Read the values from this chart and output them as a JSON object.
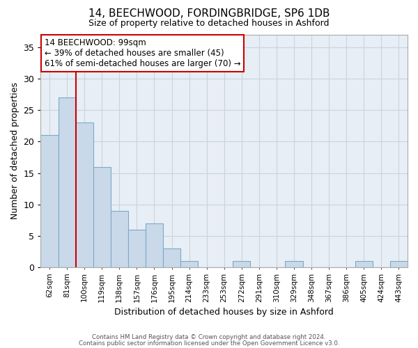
{
  "title_line1": "14, BEECHWOOD, FORDINGBRIDGE, SP6 1DB",
  "title_line2": "Size of property relative to detached houses in Ashford",
  "xlabel": "Distribution of detached houses by size in Ashford",
  "ylabel": "Number of detached properties",
  "categories": [
    "62sqm",
    "81sqm",
    "100sqm",
    "119sqm",
    "138sqm",
    "157sqm",
    "176sqm",
    "195sqm",
    "214sqm",
    "233sqm",
    "253sqm",
    "272sqm",
    "291sqm",
    "310sqm",
    "329sqm",
    "348sqm",
    "367sqm",
    "386sqm",
    "405sqm",
    "424sqm",
    "443sqm"
  ],
  "values": [
    21,
    27,
    23,
    16,
    9,
    6,
    7,
    3,
    1,
    0,
    0,
    1,
    0,
    0,
    1,
    0,
    0,
    0,
    1,
    0,
    1
  ],
  "bar_color": "#c9d9ea",
  "bar_edge_color": "#7aaac8",
  "grid_color": "#c8d4e0",
  "background_color": "#e8eef5",
  "vline_index": 2,
  "annotation_line1": "14 BEECHWOOD: 99sqm",
  "annotation_line2": "← 39% of detached houses are smaller (45)",
  "annotation_line3": "61% of semi-detached houses are larger (70) →",
  "vline_color": "#cc0000",
  "annotation_box_facecolor": "#ffffff",
  "annotation_box_edgecolor": "#cc0000",
  "footer_line1": "Contains HM Land Registry data © Crown copyright and database right 2024.",
  "footer_line2": "Contains public sector information licensed under the Open Government Licence v3.0.",
  "ylim": [
    0,
    37
  ],
  "yticks": [
    0,
    5,
    10,
    15,
    20,
    25,
    30,
    35
  ]
}
